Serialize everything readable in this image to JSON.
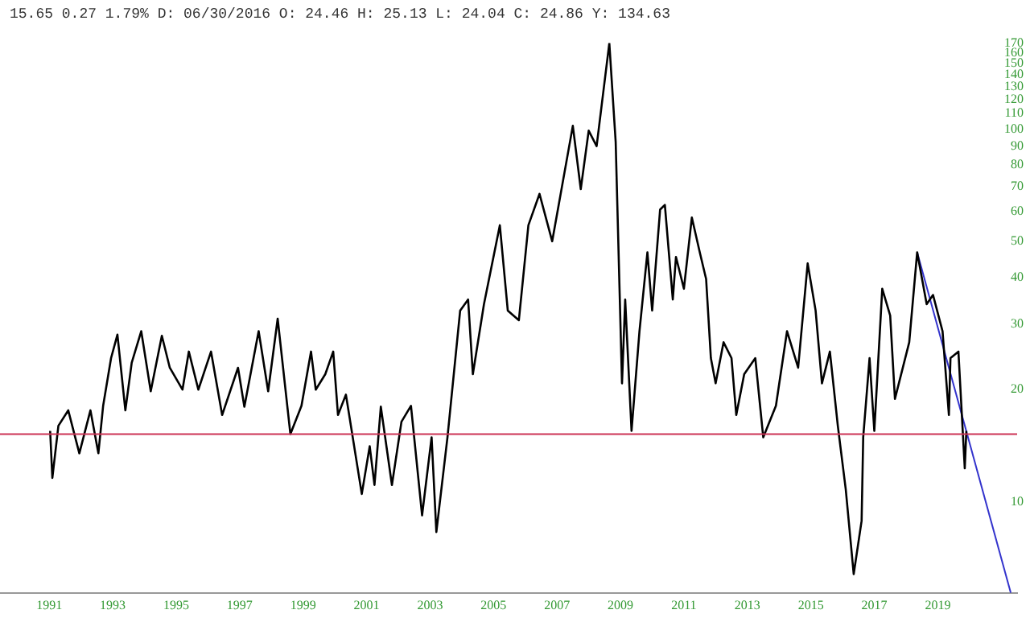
{
  "chart_data": {
    "type": "line",
    "title": "15.65 0.27 1.79% D: 06/30/2016 O: 24.46 H: 25.13 L: 24.04 C: 24.86 Y: 134.63",
    "xlim": [
      1989.45,
      2021.5
    ],
    "xticks": [
      1991,
      1993,
      1995,
      1997,
      1999,
      2001,
      2003,
      2005,
      2007,
      2009,
      2011,
      2013,
      2015,
      2017,
      2019
    ],
    "ylim": [
      5.7,
      170
    ],
    "yticks": [
      10,
      20,
      30,
      40,
      50,
      60,
      70,
      80,
      90,
      100,
      110,
      120,
      130,
      140,
      150,
      160,
      170
    ],
    "log": true,
    "grid": false,
    "legend": false,
    "marker": "none",
    "series": [
      {
        "color": "#000000",
        "x": [
          1991.03,
          1991.1,
          1991.29,
          1991.6,
          1991.95,
          1992.3,
          1992.55,
          1992.7,
          1992.95,
          1993.15,
          1993.4,
          1993.6,
          1993.9,
          1994.2,
          1994.55,
          1994.8,
          1995.2,
          1995.4,
          1995.7,
          1996.1,
          1996.45,
          1996.95,
          1997.15,
          1997.6,
          1997.9,
          1998.2,
          1998.6,
          1998.95,
          1999.25,
          1999.4,
          1999.7,
          1999.95,
          2000.1,
          2000.35,
          2000.85,
          2001.1,
          2001.25,
          2001.45,
          2001.8,
          2002.1,
          2002.4,
          2002.75,
          2003.05,
          2003.2,
          2003.55,
          2003.95,
          2004.2,
          2004.35,
          2004.7,
          2005.2,
          2005.45,
          2005.8,
          2006.1,
          2006.45,
          2006.85,
          2007.5,
          2007.75,
          2008.0,
          2008.25,
          2008.65,
          2008.85,
          2009.05,
          2009.15,
          2009.35,
          2009.6,
          2009.85,
          2010.0,
          2010.25,
          2010.4,
          2010.65,
          2010.75,
          2011.0,
          2011.25,
          2011.5,
          2011.7,
          2011.85,
          2012.0,
          2012.25,
          2012.5,
          2012.65,
          2012.9,
          2013.25,
          2013.5,
          2013.9,
          2014.25,
          2014.6,
          2014.9,
          2015.15,
          2015.35,
          2015.6,
          2015.85,
          2016.1,
          2016.35,
          2016.6,
          2016.65,
          2016.85,
          2017.0,
          2017.25,
          2017.5,
          2017.65,
          2018.1,
          2018.35,
          2018.65,
          2018.85,
          2019.15,
          2019.35,
          2019.4,
          2019.65,
          2019.85,
          2019.9
        ],
        "values": [
          15.5,
          11.6,
          16.0,
          17.6,
          13.5,
          17.6,
          13.5,
          18.1,
          24.3,
          28.1,
          17.6,
          23.6,
          28.7,
          19.8,
          27.9,
          22.9,
          20.0,
          25.3,
          20.0,
          25.3,
          17.1,
          22.9,
          18.0,
          28.7,
          19.8,
          31.0,
          15.2,
          18.1,
          25.3,
          20.0,
          22.0,
          25.3,
          17.1,
          19.4,
          10.5,
          14.1,
          11.1,
          18.0,
          11.1,
          16.4,
          18.1,
          9.2,
          14.9,
          8.3,
          14.9,
          32.6,
          34.9,
          22.0,
          33.9,
          55.2,
          32.6,
          30.7,
          55.2,
          67.0,
          50.0,
          102,
          69.0,
          99,
          90,
          170,
          92.5,
          20.8,
          34.9,
          15.5,
          28.7,
          46.7,
          32.6,
          60.8,
          62.6,
          34.9,
          45.4,
          37.3,
          57.9,
          46.7,
          39.6,
          24.3,
          20.8,
          26.8,
          24.3,
          17.1,
          22.0,
          24.3,
          14.9,
          18.1,
          28.7,
          22.9,
          43.6,
          32.6,
          20.8,
          25.3,
          16.0,
          10.8,
          6.4,
          8.9,
          14.9,
          24.3,
          15.5,
          37.3,
          31.6,
          18.9,
          26.8,
          46.7,
          33.9,
          35.9,
          28.7,
          17.1,
          24.3,
          25.3,
          12.3,
          15.5
        ]
      },
      {
        "type": "line",
        "color": "#3333cc",
        "x": [
          2018.35,
          2021.3
        ],
        "values": [
          46.7,
          5.7
        ]
      }
    ],
    "ref_lines": [
      {
        "axis": "y",
        "value": 15.2,
        "color": "#cc3355"
      }
    ]
  }
}
